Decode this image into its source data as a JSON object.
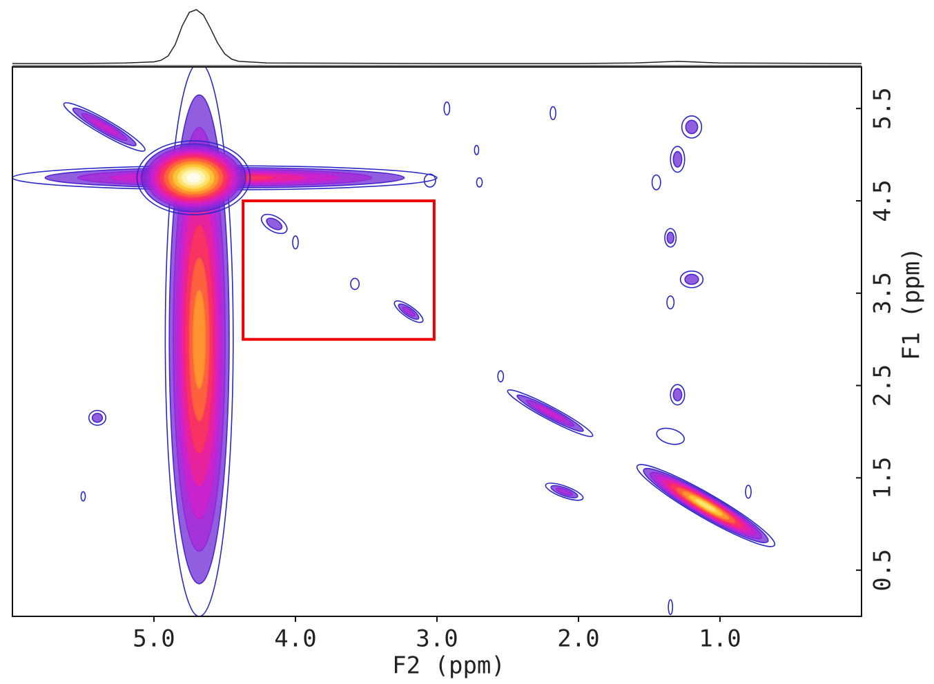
{
  "chart_data": {
    "type": "contour",
    "xlabel": "F2 (ppm)",
    "ylabel": "F1 (ppm)",
    "xlim": [
      6.0,
      0.0
    ],
    "ylim": [
      0.0,
      5.95
    ],
    "xticks": [
      {
        "value": 5,
        "label": "5.0"
      },
      {
        "value": 4,
        "label": "4.0"
      },
      {
        "value": 3,
        "label": "3.0"
      },
      {
        "value": 2,
        "label": "2.0"
      },
      {
        "value": 1,
        "label": "1.0"
      }
    ],
    "yticks": [
      0.5,
      1.5,
      2.5,
      3.5,
      4.5,
      5.5
    ],
    "projection": {
      "x": [
        6.0,
        5.5,
        5.2,
        5.0,
        4.95,
        4.9,
        4.85,
        4.8,
        4.75,
        4.7,
        4.65,
        4.6,
        4.55,
        4.5,
        4.45,
        4.4,
        4.2,
        3.0,
        2.0,
        1.6,
        1.4,
        1.3,
        1.2,
        1.0,
        0.0
      ],
      "values": [
        0,
        0,
        0.01,
        0.03,
        0.06,
        0.14,
        0.35,
        0.7,
        0.95,
        1.0,
        0.9,
        0.65,
        0.38,
        0.18,
        0.08,
        0.04,
        0.01,
        0,
        0,
        0.01,
        0.03,
        0.04,
        0.03,
        0.01,
        0
      ]
    },
    "peaks": [
      {
        "x": 4.5,
        "y": 4.75,
        "rx": 1.5,
        "ry": 0.13,
        "angle": 0,
        "levels": 6
      },
      {
        "x": 4.68,
        "y": 3.0,
        "rx": 0.24,
        "ry": 3.0,
        "angle": 0,
        "levels": 8
      },
      {
        "x": 4.72,
        "y": 4.75,
        "rx": 0.4,
        "ry": 0.4,
        "angle": 0,
        "levels": 12
      },
      {
        "x": 5.35,
        "y": 5.3,
        "rx": 0.33,
        "ry": 0.08,
        "angle": 30,
        "levels": 4
      },
      {
        "x": 3.2,
        "y": 3.3,
        "rx": 0.12,
        "ry": 0.06,
        "angle": 35,
        "levels": 3
      },
      {
        "x": 3.58,
        "y": 3.6,
        "rx": 0.03,
        "ry": 0.06,
        "angle": 0,
        "levels": 1
      },
      {
        "x": 4.0,
        "y": 4.05,
        "rx": 0.02,
        "ry": 0.07,
        "angle": 0,
        "levels": 1
      },
      {
        "x": 4.15,
        "y": 4.25,
        "rx": 0.1,
        "ry": 0.08,
        "angle": 30,
        "levels": 2
      },
      {
        "x": 2.2,
        "y": 2.2,
        "rx": 0.34,
        "ry": 0.07,
        "angle": 28,
        "levels": 4
      },
      {
        "x": 1.1,
        "y": 1.2,
        "rx": 0.56,
        "ry": 0.13,
        "angle": 30,
        "levels": 10
      },
      {
        "x": 2.1,
        "y": 1.35,
        "rx": 0.14,
        "ry": 0.06,
        "angle": 20,
        "levels": 3
      },
      {
        "x": 5.4,
        "y": 2.15,
        "rx": 0.06,
        "ry": 0.08,
        "angle": 0,
        "levels": 2
      },
      {
        "x": 1.2,
        "y": 5.3,
        "rx": 0.07,
        "ry": 0.12,
        "angle": 0,
        "levels": 2
      },
      {
        "x": 1.3,
        "y": 4.95,
        "rx": 0.05,
        "ry": 0.14,
        "angle": 0,
        "levels": 2
      },
      {
        "x": 1.45,
        "y": 4.7,
        "rx": 0.03,
        "ry": 0.08,
        "angle": 0,
        "levels": 1
      },
      {
        "x": 1.35,
        "y": 4.1,
        "rx": 0.04,
        "ry": 0.1,
        "angle": 0,
        "levels": 2
      },
      {
        "x": 1.2,
        "y": 3.65,
        "rx": 0.08,
        "ry": 0.09,
        "angle": 0,
        "levels": 2
      },
      {
        "x": 1.35,
        "y": 3.4,
        "rx": 0.025,
        "ry": 0.07,
        "angle": 0,
        "levels": 1
      },
      {
        "x": 1.3,
        "y": 2.4,
        "rx": 0.05,
        "ry": 0.11,
        "angle": 0,
        "levels": 2
      },
      {
        "x": 1.35,
        "y": 1.95,
        "rx": 0.1,
        "ry": 0.08,
        "angle": 15,
        "levels": 1
      },
      {
        "x": 0.8,
        "y": 1.35,
        "rx": 0.02,
        "ry": 0.07,
        "angle": 0,
        "levels": 1
      },
      {
        "x": 2.7,
        "y": 4.7,
        "rx": 0.02,
        "ry": 0.05,
        "angle": 0,
        "levels": 1
      },
      {
        "x": 2.72,
        "y": 5.05,
        "rx": 0.015,
        "ry": 0.05,
        "angle": 0,
        "levels": 1
      },
      {
        "x": 2.93,
        "y": 5.5,
        "rx": 0.02,
        "ry": 0.07,
        "angle": 0,
        "levels": 1
      },
      {
        "x": 2.18,
        "y": 5.45,
        "rx": 0.02,
        "ry": 0.07,
        "angle": 0,
        "levels": 1
      },
      {
        "x": 3.05,
        "y": 4.72,
        "rx": 0.04,
        "ry": 0.07,
        "angle": 0,
        "levels": 1
      },
      {
        "x": 2.55,
        "y": 2.6,
        "rx": 0.02,
        "ry": 0.06,
        "angle": 0,
        "levels": 1
      },
      {
        "x": 5.5,
        "y": 1.3,
        "rx": 0.015,
        "ry": 0.05,
        "angle": 0,
        "levels": 1
      },
      {
        "x": 1.35,
        "y": 0.1,
        "rx": 0.015,
        "ry": 0.08,
        "angle": 0,
        "levels": 1
      }
    ],
    "highlight_box": {
      "xlim": [
        4.37,
        3.02
      ],
      "ylim": [
        3.0,
        4.5
      ],
      "color": "#ee0000"
    }
  }
}
